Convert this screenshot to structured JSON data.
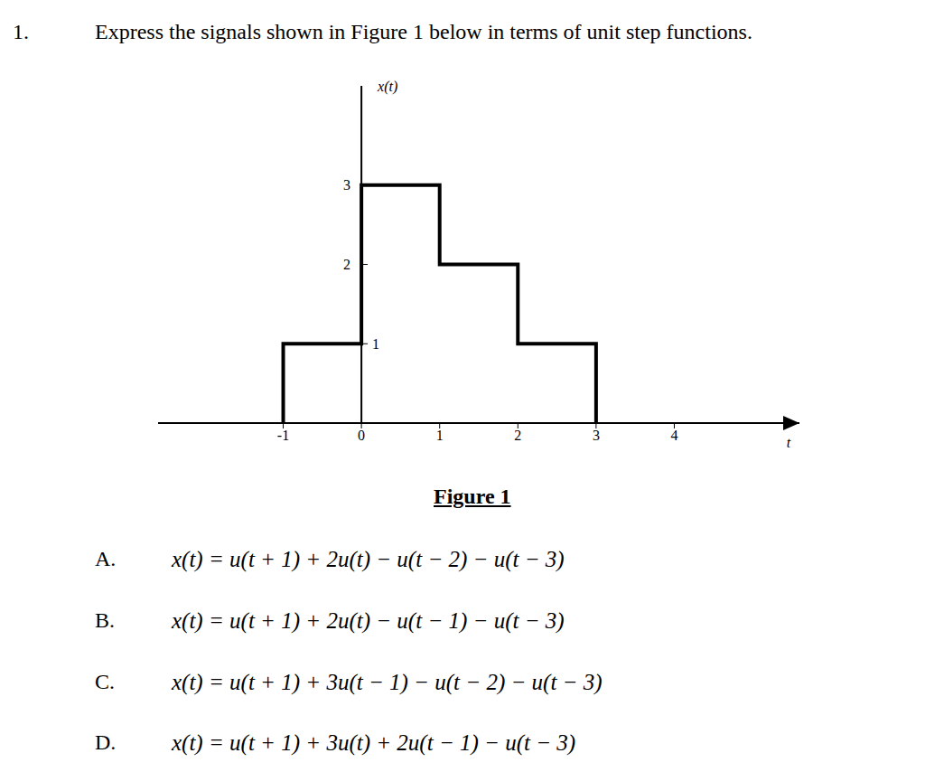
{
  "question": {
    "number": "1.",
    "text": "Express the signals shown in Figure 1 below in terms of unit step functions."
  },
  "chart_data": {
    "type": "line",
    "line_style": "step",
    "y_label": "x(t)",
    "x_label": "t",
    "caption": "Figure 1",
    "x": [
      -1,
      -1,
      0,
      1,
      2,
      3
    ],
    "values": [
      0,
      1,
      3,
      2,
      1,
      0
    ],
    "color": "#000000",
    "xlim": [
      -2.6,
      5.6
    ],
    "ylim": [
      0,
      4.25
    ],
    "xticks": [
      -1,
      0,
      1,
      2,
      3,
      4
    ],
    "yticks": [
      1,
      2,
      3
    ],
    "grid": false
  },
  "options": [
    {
      "label": "A.",
      "text": "x(t) = u(t + 1) + 2u(t) − u(t − 2) − u(t − 3)"
    },
    {
      "label": "B.",
      "text": "x(t) = u(t + 1) + 2u(t) − u(t − 1) − u(t − 3)"
    },
    {
      "label": "C.",
      "text": "x(t) = u(t + 1) + 3u(t − 1) − u(t − 2) − u(t − 3)"
    },
    {
      "label": "D.",
      "text": "x(t) = u(t + 1) + 3u(t) + 2u(t − 1) − u(t − 3)"
    }
  ]
}
